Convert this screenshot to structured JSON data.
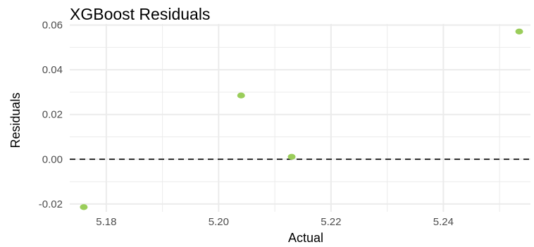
{
  "chart_data": {
    "type": "scatter",
    "title": "XGBoost Residuals",
    "xlabel": "Actual",
    "ylabel": "Residuals",
    "xlim": [
      5.1735,
      5.2555
    ],
    "ylim": [
      -0.0235,
      0.0605
    ],
    "x_ticks": [
      5.18,
      5.2,
      5.22,
      5.24
    ],
    "x_tick_labels": [
      "5.18",
      "5.20",
      "5.22",
      "5.24"
    ],
    "y_ticks": [
      -0.02,
      0.0,
      0.02,
      0.04,
      0.06
    ],
    "y_tick_labels": [
      "-0.02",
      "0.00",
      "0.02",
      "0.04",
      "0.06"
    ],
    "points": [
      {
        "x": 5.176,
        "y": -0.0214
      },
      {
        "x": 5.204,
        "y": 0.0285
      },
      {
        "x": 5.213,
        "y": 0.0011
      },
      {
        "x": 5.2535,
        "y": 0.0571
      }
    ],
    "reference_line": {
      "y": 0,
      "style": "dashed",
      "color": "#000000"
    },
    "point_color": "#9ACD5A",
    "grid": true,
    "grid_color": "#ebebeb",
    "legend": "none"
  }
}
